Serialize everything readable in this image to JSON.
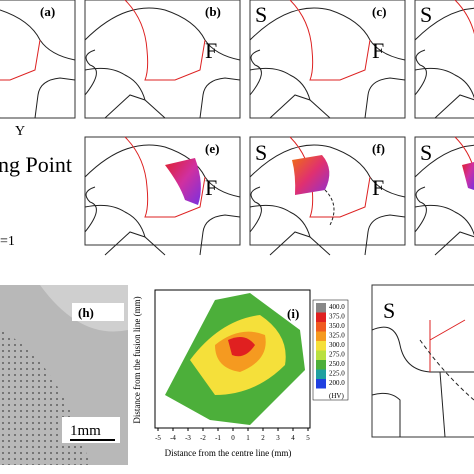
{
  "top_row": {
    "a": "(a)",
    "b": "(b)",
    "b_f": "F",
    "c": "(c)",
    "c_s": "S",
    "c_f": "F",
    "d_s": "S"
  },
  "middle_row": {
    "axis": "Y",
    "caption": "ng Point",
    "e": "(e)",
    "e_f": "F",
    "f": "(f)",
    "f_s": "S",
    "f_f": "F",
    "g_s": "S",
    "note": "=1"
  },
  "bottom_row": {
    "h": "(h)",
    "scale": "1mm",
    "i": "(i)",
    "colorbar": [
      "400.0",
      "375.0",
      "350.0",
      "325.0",
      "300.0",
      "275.0",
      "250.0",
      "225.0",
      "200.0"
    ],
    "unit": "(HV)",
    "x_label": "Distance from the centre line (mm)",
    "y_label": "Distance from the fusion line (mm)",
    "x_ticks": [
      "-5",
      "-4",
      "-3",
      "-2",
      "-1",
      "0",
      "1",
      "2",
      "3",
      "4",
      "5"
    ],
    "right_s": "S"
  }
}
